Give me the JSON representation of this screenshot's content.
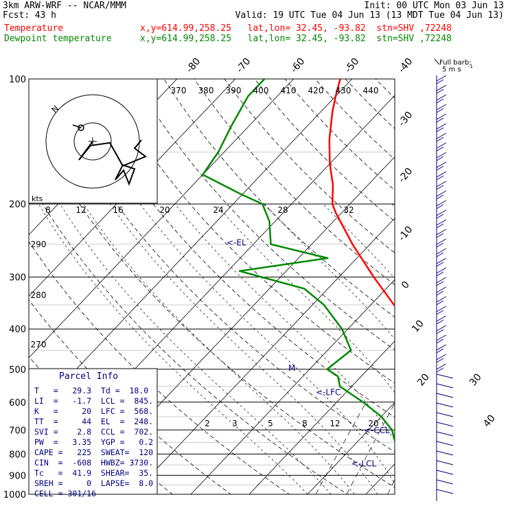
{
  "header": {
    "model": "3km ARW-WRF -- NCAR/MMM",
    "init": "Init: 00 UTC Mon 03 Jun 13",
    "fcst_label": "Fcst:",
    "fcst_value": "43 h",
    "valid": "Valid: 19 UTC Tue 04 Jun 13 (13 MDT Tue 04 Jun 13)"
  },
  "legend": {
    "temp_name": "Temperature",
    "temp_info": "x,y=614.99,258.25   lat,lon= 32.45, -93.82  stn=SHV ,72248",
    "dew_name": "Dewpoint temperature",
    "dew_info": "x,y=614.99,258.25   lat,lon= 32.45, -93.82  stn=SHV ,72248"
  },
  "colors": {
    "temperature": "#ff0000",
    "dewpoint": "#008800",
    "parcel_label": "#000080",
    "grid": "#000000"
  },
  "barb_legend": {
    "line1": "Full barb:",
    "line2": "5 m s",
    "exp": "-1"
  },
  "hodograph": {
    "units": "kts",
    "north": "N"
  },
  "parcel_info": {
    "title": "Parcel Info",
    "rows": [
      "T   =   29.3  Td =  18.0",
      "LI  =   -1.7  LCL =  845.",
      "K   =     20  LFC =  568.",
      "TT  =     44  EL  =  248.",
      "SVI =    2.8  CCL =  702.",
      "PW  =   3.35  YGP =   0.2",
      "CAPE =   225  SWEAT=  120",
      "CIN  =  -608  HWBZ= 3730.",
      "Tc   =  41.9  SHEAR=  35.",
      "SREH =     0  LAPSE=  8.0",
      "CELL = 301/16"
    ]
  },
  "chart_data": {
    "type": "line",
    "title": "",
    "xlabel": "",
    "ylabel": "",
    "y_axis": "pressure (hPa), log scale",
    "pressure_ticks": [
      "100",
      "200",
      "300",
      "400",
      "500",
      "600",
      "700",
      "800",
      "900",
      "1000"
    ],
    "isotherm_labels": [
      "-80",
      "-70",
      "-60",
      "-50",
      "-40",
      "-30",
      "-20",
      "-10",
      "0",
      "10",
      "20",
      "30",
      "40"
    ],
    "theta_labels": [
      "370",
      "380",
      "390",
      "400",
      "410",
      "420",
      "430",
      "440"
    ],
    "dry_adiabat_labels": [
      "290",
      "280",
      "270"
    ],
    "mixing_ratio_labels": [
      "2",
      "3",
      "5",
      "8",
      "12",
      "20"
    ],
    "hodo_speed_labels": [
      "8",
      "12",
      "16",
      "20",
      "24",
      "28",
      "32"
    ],
    "level_markers": [
      {
        "label": "<-EL",
        "pressure": 248
      },
      {
        "label": "<-LFC",
        "pressure": 568
      },
      {
        "label": "<-CCL",
        "pressure": 702
      },
      {
        "label": "<-LCL",
        "pressure": 845
      }
    ],
    "freezing_marker": {
      "label": "M",
      "pressure": 497
    },
    "series": [
      {
        "name": "Temperature",
        "points": [
          [
            1000,
            29.3
          ],
          [
            970,
            25.5
          ],
          [
            940,
            22.3
          ],
          [
            900,
            20.5
          ],
          [
            850,
            18.5
          ],
          [
            800,
            15.5
          ],
          [
            750,
            11.5
          ],
          [
            700,
            9.2
          ],
          [
            650,
            5.5
          ],
          [
            600,
            0.5
          ],
          [
            550,
            -4.5
          ],
          [
            500,
            -8.5
          ],
          [
            450,
            -13
          ],
          [
            400,
            -18.5
          ],
          [
            350,
            -26
          ],
          [
            300,
            -34
          ],
          [
            250,
            -43
          ],
          [
            210,
            -51
          ],
          [
            200,
            -53
          ],
          [
            180,
            -56
          ],
          [
            160,
            -60
          ],
          [
            140,
            -64
          ],
          [
            120,
            -68
          ],
          [
            110,
            -70
          ],
          [
            105,
            -71
          ],
          [
            100,
            -72
          ]
        ]
      },
      {
        "name": "Dewpoint temperature",
        "points": [
          [
            1000,
            18.0
          ],
          [
            975,
            17.0
          ],
          [
            950,
            17.0
          ],
          [
            930,
            11.0
          ],
          [
            900,
            8.0
          ],
          [
            870,
            6.0
          ],
          [
            840,
            4.0
          ],
          [
            800,
            -1.0
          ],
          [
            700,
            -6.0
          ],
          [
            650,
            -10.0
          ],
          [
            600,
            -15.5
          ],
          [
            550,
            -22.0
          ],
          [
            520,
            -24.0
          ],
          [
            500,
            -27.0
          ],
          [
            450,
            -26.0
          ],
          [
            400,
            -31.0
          ],
          [
            350,
            -38.0
          ],
          [
            320,
            -44.0
          ],
          [
            290,
            -58.0
          ],
          [
            270,
            -45.0
          ],
          [
            250,
            -57.0
          ],
          [
            220,
            -61.0
          ],
          [
            200,
            -65.0
          ],
          [
            190,
            -70.0
          ],
          [
            170,
            -80.0
          ],
          [
            150,
            -81.0
          ],
          [
            130,
            -83.0
          ],
          [
            110,
            -85.0
          ],
          [
            100,
            -85.0
          ]
        ]
      }
    ]
  }
}
